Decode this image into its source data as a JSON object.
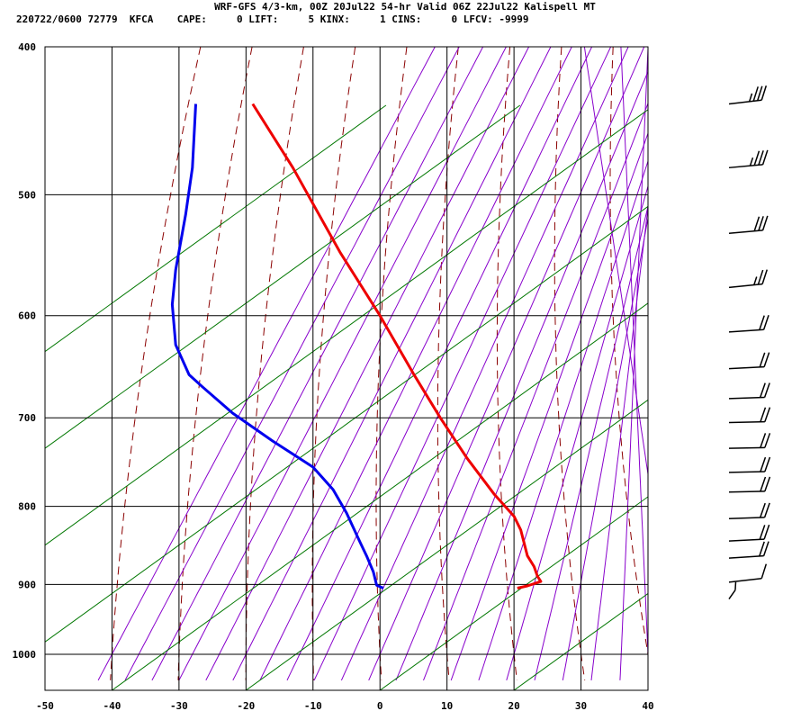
{
  "header": {
    "line1": "WRF-GFS 4/3-km, 00Z 20Jul22 54-hr Valid 06Z 22Jul22 Kalispell MT",
    "line2": "220722/0600 72779  KFCA    CAPE:     0 LIFT:     5 KINX:     1 CINS:     0 LFCV: -9999"
  },
  "chart_data": {
    "type": "line",
    "title": "WRF-GFS 4/3-km, 00Z 20Jul22 54-hr Valid 06Z 22Jul22 Kalispell MT",
    "xlabel": "",
    "ylabel": "",
    "xlim": [
      -50,
      40
    ],
    "ylim": [
      1040,
      400
    ],
    "y_scale": "log",
    "x_ticks": [
      -50,
      -40,
      -30,
      -20,
      -10,
      0,
      10,
      20,
      30,
      40
    ],
    "x_tick_labels": [
      "-50",
      "-40",
      "-30",
      "-20",
      "-10",
      "0",
      "10",
      "20",
      "30",
      "40"
    ],
    "y_ticks": [
      400,
      500,
      600,
      700,
      800,
      900,
      1000
    ],
    "y_tick_labels": [
      "400",
      "500",
      "600",
      "700",
      "800",
      "900",
      "1000"
    ],
    "grid": true,
    "series": [
      {
        "color": "#ee0000",
        "points": [
          [
            -19,
            436
          ],
          [
            -13,
            480
          ],
          [
            -6,
            545
          ],
          [
            0,
            600
          ],
          [
            5,
            655
          ],
          [
            9,
            700
          ],
          [
            13,
            744
          ],
          [
            17,
            785
          ],
          [
            20,
            812
          ],
          [
            21,
            829
          ],
          [
            22,
            862
          ],
          [
            23,
            876
          ],
          [
            23.5,
            889
          ],
          [
            24,
            896
          ],
          [
            22,
            902
          ],
          [
            20.5,
            905
          ]
        ]
      },
      {
        "color": "#0000ee",
        "points": [
          [
            -27.5,
            436
          ],
          [
            -28,
            480
          ],
          [
            -29,
            515
          ],
          [
            -30.5,
            560
          ],
          [
            -31,
            590
          ],
          [
            -30.5,
            627
          ],
          [
            -28.5,
            656
          ],
          [
            -26.5,
            668
          ],
          [
            -22,
            695
          ],
          [
            -16,
            725
          ],
          [
            -10,
            754
          ],
          [
            -7,
            780
          ],
          [
            -5,
            808
          ],
          [
            -3,
            844
          ],
          [
            -2,
            862
          ],
          [
            -1,
            883
          ],
          [
            -0.5,
            901
          ],
          [
            0.5,
            905
          ]
        ]
      }
    ],
    "isotherm_color": "#000000",
    "dry_adiabat_color": "#8b0000",
    "moist_adiabat_color": "#8800cc",
    "mixing_ratio_color": "#007700",
    "winds": [
      {
        "p": 436,
        "dir": 245,
        "spd": 35
      },
      {
        "p": 480,
        "dir": 250,
        "spd": 35
      },
      {
        "p": 530,
        "dir": 250,
        "spd": 30
      },
      {
        "p": 575,
        "dir": 248,
        "spd": 25
      },
      {
        "p": 615,
        "dir": 255,
        "spd": 20
      },
      {
        "p": 650,
        "dir": 258,
        "spd": 20
      },
      {
        "p": 680,
        "dir": 262,
        "spd": 20
      },
      {
        "p": 705,
        "dir": 265,
        "spd": 20
      },
      {
        "p": 733,
        "dir": 265,
        "spd": 20
      },
      {
        "p": 760,
        "dir": 265,
        "spd": 20
      },
      {
        "p": 783,
        "dir": 265,
        "spd": 20
      },
      {
        "p": 815,
        "dir": 262,
        "spd": 20
      },
      {
        "p": 843,
        "dir": 258,
        "spd": 20
      },
      {
        "p": 865,
        "dir": 255,
        "spd": 20
      },
      {
        "p": 897,
        "dir": 245,
        "spd": 10
      },
      {
        "p": 920,
        "dir": 190,
        "spd": 5
      }
    ]
  }
}
